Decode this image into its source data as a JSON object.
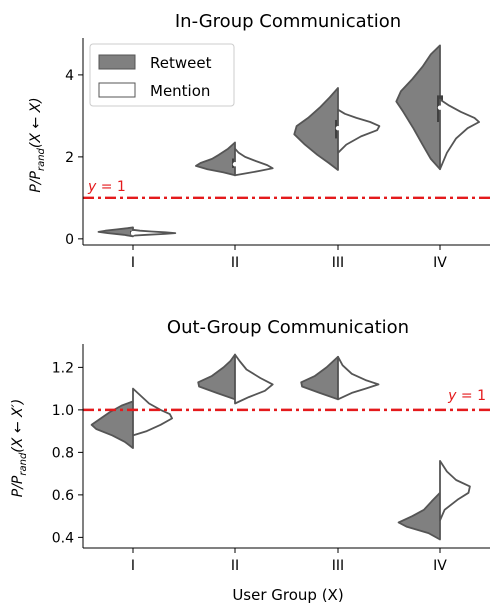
{
  "xlabel": "User Group (X)",
  "colors": {
    "retweet_fill": "#808080",
    "mention_fill": "#ffffff",
    "edge": "#555555",
    "reference_line": "#e41a1c",
    "axis": "#000000"
  },
  "legend": {
    "placement": "top-left",
    "entries": [
      {
        "label": "Retweet",
        "fill": "#808080"
      },
      {
        "label": "Mention",
        "fill": "#ffffff"
      }
    ]
  },
  "chart_data": [
    {
      "type": "violin",
      "title": "In-Group Communication",
      "ylabel": "P/P_rand(X ← X)",
      "ylabel_parts": {
        "main": "P/P",
        "sub": "rand",
        "tail": "(X ← X)"
      },
      "xlabel": "",
      "categories": [
        "I",
        "II",
        "III",
        "IV"
      ],
      "ylim": [
        -0.15,
        4.9
      ],
      "yticks": [
        0,
        2,
        4
      ],
      "grid": false,
      "legend": "top-left",
      "reference_line": {
        "y": 1,
        "label": "y = 1",
        "label_parts": {
          "var": "y",
          "eq": " = 1"
        },
        "label_side": "left"
      },
      "series": [
        {
          "name": "Retweet",
          "side": "left",
          "violins": [
            {
              "profile": [
                [
                  0.06,
                  0
                ],
                [
                  0.1,
                  0.2
                ],
                [
                  0.14,
                  0.55
                ],
                [
                  0.17,
                  0.75
                ],
                [
                  0.2,
                  0.6
                ],
                [
                  0.23,
                  0.35
                ],
                [
                  0.26,
                  0.12
                ],
                [
                  0.28,
                  0
                ]
              ],
              "q1": 0.11,
              "median": 0.14,
              "q3": 0.19
            },
            {
              "profile": [
                [
                  1.55,
                  0
                ],
                [
                  1.62,
                  0.25
                ],
                [
                  1.7,
                  0.6
                ],
                [
                  1.78,
                  0.85
                ],
                [
                  1.85,
                  0.75
                ],
                [
                  1.95,
                  0.5
                ],
                [
                  2.05,
                  0.35
                ],
                [
                  2.2,
                  0.15
                ],
                [
                  2.35,
                  0
                ]
              ],
              "q1": 1.73,
              "median": 1.82,
              "q3": 1.96
            },
            {
              "profile": [
                [
                  1.68,
                  0
                ],
                [
                  1.85,
                  0.2
                ],
                [
                  2.05,
                  0.45
                ],
                [
                  2.3,
                  0.72
                ],
                [
                  2.55,
                  0.95
                ],
                [
                  2.75,
                  0.9
                ],
                [
                  2.95,
                  0.65
                ],
                [
                  3.2,
                  0.4
                ],
                [
                  3.45,
                  0.18
                ],
                [
                  3.68,
                  0
                ]
              ],
              "q1": 2.45,
              "median": 2.7,
              "q3": 2.9
            },
            {
              "profile": [
                [
                  1.7,
                  0
                ],
                [
                  1.95,
                  0.2
                ],
                [
                  2.3,
                  0.38
                ],
                [
                  2.7,
                  0.58
                ],
                [
                  3.1,
                  0.8
                ],
                [
                  3.35,
                  0.95
                ],
                [
                  3.6,
                  0.85
                ],
                [
                  3.9,
                  0.6
                ],
                [
                  4.2,
                  0.38
                ],
                [
                  4.5,
                  0.2
                ],
                [
                  4.72,
                  0
                ]
              ],
              "q1": 2.85,
              "median": 3.2,
              "q3": 3.5
            }
          ]
        },
        {
          "name": "Mention",
          "side": "right",
          "violins": [
            {
              "profile": [
                [
                  0.08,
                  0
                ],
                [
                  0.1,
                  0.3
                ],
                [
                  0.12,
                  0.7
                ],
                [
                  0.14,
                  0.92
                ],
                [
                  0.16,
                  0.7
                ],
                [
                  0.18,
                  0.4
                ],
                [
                  0.2,
                  0.15
                ],
                [
                  0.22,
                  0
                ]
              ],
              "median": 0.14
            },
            {
              "profile": [
                [
                  1.55,
                  0
                ],
                [
                  1.6,
                  0.25
                ],
                [
                  1.66,
                  0.55
                ],
                [
                  1.72,
                  0.82
                ],
                [
                  1.8,
                  0.7
                ],
                [
                  1.9,
                  0.45
                ],
                [
                  2.0,
                  0.22
                ],
                [
                  2.1,
                  0.08
                ],
                [
                  2.2,
                  0
                ]
              ],
              "median": 1.78
            },
            {
              "profile": [
                [
                  2.1,
                  0
                ],
                [
                  2.3,
                  0.18
                ],
                [
                  2.5,
                  0.5
                ],
                [
                  2.65,
                  0.85
                ],
                [
                  2.75,
                  0.9
                ],
                [
                  2.85,
                  0.7
                ],
                [
                  2.95,
                  0.4
                ],
                [
                  3.05,
                  0.15
                ],
                [
                  3.15,
                  0
                ]
              ],
              "median": 2.75
            },
            {
              "profile": [
                [
                  1.7,
                  0
                ],
                [
                  2.1,
                  0.15
                ],
                [
                  2.45,
                  0.35
                ],
                [
                  2.7,
                  0.6
                ],
                [
                  2.85,
                  0.85
                ],
                [
                  2.95,
                  0.75
                ],
                [
                  3.1,
                  0.45
                ],
                [
                  3.25,
                  0.2
                ],
                [
                  3.4,
                  0
                ]
              ],
              "median": 2.88
            }
          ]
        }
      ]
    },
    {
      "type": "violin",
      "title": "Out-Group Communication",
      "ylabel": "P/P_rand(X ← X′)",
      "ylabel_parts": {
        "main": "P/P",
        "sub": "rand",
        "tail": "(X ← X′)"
      },
      "xlabel": "User Group (X)",
      "categories": [
        "I",
        "II",
        "III",
        "IV"
      ],
      "ylim": [
        0.35,
        1.31
      ],
      "yticks": [
        0.4,
        0.6,
        0.8,
        1.0,
        1.2
      ],
      "grid": false,
      "legend": "none",
      "reference_line": {
        "y": 1,
        "label": "y = 1",
        "label_parts": {
          "var": "y",
          "eq": " = 1"
        },
        "label_side": "right"
      },
      "series": [
        {
          "name": "Retweet",
          "side": "left",
          "violins": [
            {
              "profile": [
                [
                  0.82,
                  0
                ],
                [
                  0.85,
                  0.18
                ],
                [
                  0.88,
                  0.45
                ],
                [
                  0.91,
                  0.8
                ],
                [
                  0.93,
                  0.9
                ],
                [
                  0.96,
                  0.7
                ],
                [
                  0.99,
                  0.5
                ],
                [
                  1.02,
                  0.25
                ],
                [
                  1.04,
                  0
                ]
              ],
              "median": 0.93
            },
            {
              "profile": [
                [
                  1.05,
                  0
                ],
                [
                  1.08,
                  0.4
                ],
                [
                  1.11,
                  0.78
                ],
                [
                  1.13,
                  0.8
                ],
                [
                  1.16,
                  0.5
                ],
                [
                  1.2,
                  0.25
                ],
                [
                  1.23,
                  0.1
                ],
                [
                  1.26,
                  0
                ]
              ],
              "median": 1.12
            },
            {
              "profile": [
                [
                  1.05,
                  0
                ],
                [
                  1.08,
                  0.4
                ],
                [
                  1.11,
                  0.78
                ],
                [
                  1.13,
                  0.8
                ],
                [
                  1.16,
                  0.5
                ],
                [
                  1.2,
                  0.25
                ],
                [
                  1.23,
                  0.1
                ],
                [
                  1.25,
                  0
                ]
              ],
              "median": 1.12
            },
            {
              "profile": [
                [
                  0.39,
                  0
                ],
                [
                  0.42,
                  0.25
                ],
                [
                  0.45,
                  0.72
                ],
                [
                  0.47,
                  0.9
                ],
                [
                  0.5,
                  0.6
                ],
                [
                  0.53,
                  0.35
                ],
                [
                  0.57,
                  0.18
                ],
                [
                  0.61,
                  0
                ]
              ],
              "median": 0.47
            }
          ]
        },
        {
          "name": "Mention",
          "side": "right",
          "violins": [
            {
              "profile": [
                [
                  0.88,
                  0
                ],
                [
                  0.9,
                  0.3
                ],
                [
                  0.93,
                  0.6
                ],
                [
                  0.96,
                  0.85
                ],
                [
                  0.98,
                  0.8
                ],
                [
                  1.0,
                  0.6
                ],
                [
                  1.03,
                  0.35
                ],
                [
                  1.07,
                  0.15
                ],
                [
                  1.1,
                  0
                ]
              ],
              "median": 0.97
            },
            {
              "profile": [
                [
                  1.03,
                  0
                ],
                [
                  1.06,
                  0.3
                ],
                [
                  1.09,
                  0.65
                ],
                [
                  1.12,
                  0.82
                ],
                [
                  1.15,
                  0.55
                ],
                [
                  1.19,
                  0.25
                ],
                [
                  1.23,
                  0.1
                ],
                [
                  1.26,
                  0
                ]
              ],
              "median": 1.12
            },
            {
              "profile": [
                [
                  1.05,
                  0
                ],
                [
                  1.08,
                  0.3
                ],
                [
                  1.1,
                  0.6
                ],
                [
                  1.12,
                  0.88
                ],
                [
                  1.14,
                  0.6
                ],
                [
                  1.17,
                  0.3
                ],
                [
                  1.21,
                  0.1
                ],
                [
                  1.25,
                  0
                ]
              ],
              "median": 1.12
            },
            {
              "profile": [
                [
                  0.48,
                  0
                ],
                [
                  0.53,
                  0.1
                ],
                [
                  0.58,
                  0.4
                ],
                [
                  0.61,
                  0.62
                ],
                [
                  0.64,
                  0.65
                ],
                [
                  0.67,
                  0.35
                ],
                [
                  0.71,
                  0.15
                ],
                [
                  0.76,
                  0
                ]
              ],
              "median": 0.62
            }
          ]
        }
      ]
    }
  ]
}
